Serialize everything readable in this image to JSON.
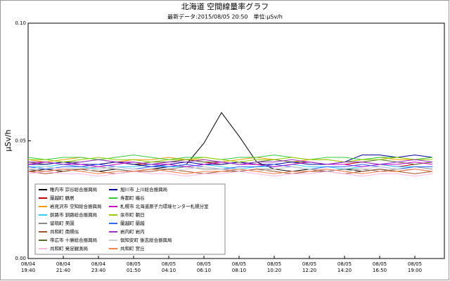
{
  "chart_data": {
    "type": "line",
    "title": "北海道 空間線量率グラフ",
    "subtitle": "最新データ:2015/08/05 20:50　単位:μSv/h",
    "y_label": "μSv/h",
    "ylim": [
      0,
      0.1
    ],
    "yticks": [
      {
        "value": 0,
        "label": "0.00"
      },
      {
        "value": 0.05,
        "label": "0.05"
      },
      {
        "value": 0.1,
        "label": "0.10"
      }
    ],
    "grid": false,
    "legend": "lower left",
    "categories": [
      "08/04\n19:40",
      null,
      "08/04\n21:40",
      null,
      "08/04\n23:40",
      null,
      "08/05\n01:50",
      null,
      "08/05\n04:10",
      null,
      "08/05\n06:10",
      null,
      "08/05\n08:10",
      null,
      "08/05\n10:20",
      null,
      "08/05\n12:20",
      null,
      "08/05\n14:20",
      null,
      "08/05\n16:50",
      null,
      "08/05\n19:00",
      null
    ],
    "series": [
      {
        "name": "稚内市 宗谷総合振興局",
        "color": "#000000",
        "values": [
          0.037,
          0.038,
          0.037,
          0.038,
          0.037,
          0.038,
          0.037,
          0.038,
          0.039,
          0.04,
          0.049,
          0.062,
          0.052,
          0.041,
          0.038,
          0.037,
          0.038,
          0.037,
          0.038,
          0.037,
          0.038,
          0.037,
          0.038,
          0.037
        ]
      },
      {
        "name": "蘭越町 鶴居",
        "color": "#c00000",
        "values": [
          0.04,
          0.041,
          0.04,
          0.039,
          0.04,
          0.041,
          0.04,
          0.04,
          0.041,
          0.042,
          0.041,
          0.04,
          0.041,
          0.04,
          0.039,
          0.04,
          0.041,
          0.04,
          0.04,
          0.041,
          0.04,
          0.039,
          0.04,
          0.041
        ]
      },
      {
        "name": "岩見沢市 空知総合振興局",
        "color": "#ff9900",
        "values": [
          0.042,
          0.041,
          0.042,
          0.043,
          0.042,
          0.041,
          0.042,
          0.042,
          0.043,
          0.042,
          0.042,
          0.041,
          0.042,
          0.043,
          0.042,
          0.041,
          0.042,
          0.042,
          0.041,
          0.042,
          0.043,
          0.042,
          0.042,
          0.043
        ]
      },
      {
        "name": "釧路市 釧路総合振興局",
        "color": "#33ccff",
        "values": [
          0.039,
          0.039,
          0.04,
          0.039,
          0.038,
          0.039,
          0.039,
          0.04,
          0.039,
          0.039,
          0.04,
          0.039,
          0.038,
          0.039,
          0.039,
          0.04,
          0.039,
          0.039,
          0.038,
          0.039,
          0.04,
          0.039,
          0.039,
          0.039
        ]
      },
      {
        "name": "留萌町 美園",
        "color": "#888888",
        "values": [
          0.038,
          0.037,
          0.038,
          0.038,
          0.039,
          0.038,
          0.037,
          0.038,
          0.038,
          0.039,
          0.038,
          0.038,
          0.037,
          0.038,
          0.038,
          0.039,
          0.038,
          0.037,
          0.038,
          0.038,
          0.037,
          0.038,
          0.039,
          0.038
        ]
      },
      {
        "name": "共和町 南幌似",
        "color": "#a0522d",
        "values": [
          0.037,
          0.036,
          0.037,
          0.038,
          0.037,
          0.036,
          0.037,
          0.037,
          0.038,
          0.037,
          0.036,
          0.037,
          0.037,
          0.038,
          0.037,
          0.036,
          0.037,
          0.037,
          0.036,
          0.037,
          0.038,
          0.037,
          0.036,
          0.037
        ]
      },
      {
        "name": "帯広市 十勝総合振興局",
        "color": "#556b2f",
        "values": [
          0.041,
          0.04,
          0.041,
          0.041,
          0.042,
          0.041,
          0.04,
          0.041,
          0.041,
          0.042,
          0.041,
          0.041,
          0.04,
          0.041,
          0.042,
          0.041,
          0.041,
          0.04,
          0.041,
          0.041,
          0.042,
          0.041,
          0.04,
          0.041
        ]
      },
      {
        "name": "共和町 発足観測局",
        "color": "#ffb6e6",
        "values": [
          0.036,
          0.037,
          0.036,
          0.036,
          0.035,
          0.036,
          0.037,
          0.036,
          0.036,
          0.035,
          0.036,
          0.036,
          0.037,
          0.036,
          0.035,
          0.036,
          0.036,
          0.037,
          0.036,
          0.035,
          0.036,
          0.036,
          0.035,
          0.036
        ]
      },
      {
        "name": "旭川市 上川総合振興局",
        "color": "#000099",
        "values": [
          0.04,
          0.04,
          0.041,
          0.04,
          0.04,
          0.041,
          0.04,
          0.039,
          0.04,
          0.041,
          0.04,
          0.04,
          0.041,
          0.04,
          0.04,
          0.041,
          0.04,
          0.04,
          0.041,
          0.044,
          0.044,
          0.043,
          0.044,
          0.043
        ]
      },
      {
        "name": "寿都町 磯谷",
        "color": "#33cc33",
        "values": [
          0.043,
          0.042,
          0.043,
          0.043,
          0.042,
          0.043,
          0.044,
          0.043,
          0.042,
          0.043,
          0.043,
          0.042,
          0.043,
          0.043,
          0.044,
          0.043,
          0.042,
          0.043,
          0.043,
          0.042,
          0.043,
          0.043,
          0.042,
          0.043
        ]
      },
      {
        "name": "札幌市 北海道原子力環境センター札幌分室",
        "color": "#cc00cc",
        "values": [
          0.04,
          0.041,
          0.04,
          0.04,
          0.039,
          0.04,
          0.041,
          0.04,
          0.04,
          0.039,
          0.04,
          0.041,
          0.04,
          0.04,
          0.039,
          0.04,
          0.041,
          0.04,
          0.04,
          0.039,
          0.04,
          0.04,
          0.041,
          0.04
        ]
      },
      {
        "name": "余市町 朝日",
        "color": "#99cc00",
        "values": [
          0.042,
          0.042,
          0.041,
          0.042,
          0.043,
          0.042,
          0.042,
          0.041,
          0.042,
          0.042,
          0.043,
          0.042,
          0.041,
          0.042,
          0.042,
          0.043,
          0.042,
          0.042,
          0.041,
          0.042,
          0.042,
          0.043,
          0.042,
          0.042
        ]
      },
      {
        "name": "蘭越町 蘭越",
        "color": "#3366ff",
        "values": [
          0.039,
          0.038,
          0.039,
          0.039,
          0.04,
          0.039,
          0.038,
          0.039,
          0.039,
          0.04,
          0.039,
          0.038,
          0.039,
          0.039,
          0.04,
          0.039,
          0.038,
          0.039,
          0.039,
          0.04,
          0.039,
          0.038,
          0.039,
          0.039
        ]
      },
      {
        "name": "岩内町 岩内",
        "color": "#9933cc",
        "values": [
          0.041,
          0.041,
          0.04,
          0.041,
          0.042,
          0.041,
          0.041,
          0.04,
          0.041,
          0.041,
          0.042,
          0.041,
          0.04,
          0.041,
          0.041,
          0.042,
          0.041,
          0.04,
          0.041,
          0.041,
          0.04,
          0.041,
          0.042,
          0.041
        ]
      },
      {
        "name": "倶知安町 後志総合振興局",
        "color": "#cccccc",
        "values": [
          0.038,
          0.039,
          0.038,
          0.037,
          0.038,
          0.039,
          0.038,
          0.038,
          0.037,
          0.038,
          0.039,
          0.038,
          0.038,
          0.037,
          0.038,
          0.039,
          0.038,
          0.038,
          0.037,
          0.038,
          0.039,
          0.038,
          0.038,
          0.037
        ]
      },
      {
        "name": "共和町 宮丘",
        "color": "#ff7f50",
        "values": [
          0.037,
          0.037,
          0.038,
          0.037,
          0.036,
          0.037,
          0.037,
          0.038,
          0.037,
          0.036,
          0.037,
          0.037,
          0.038,
          0.037,
          0.036,
          0.037,
          0.037,
          0.038,
          0.037,
          0.036,
          0.037,
          0.037,
          0.038,
          0.037
        ]
      }
    ]
  }
}
